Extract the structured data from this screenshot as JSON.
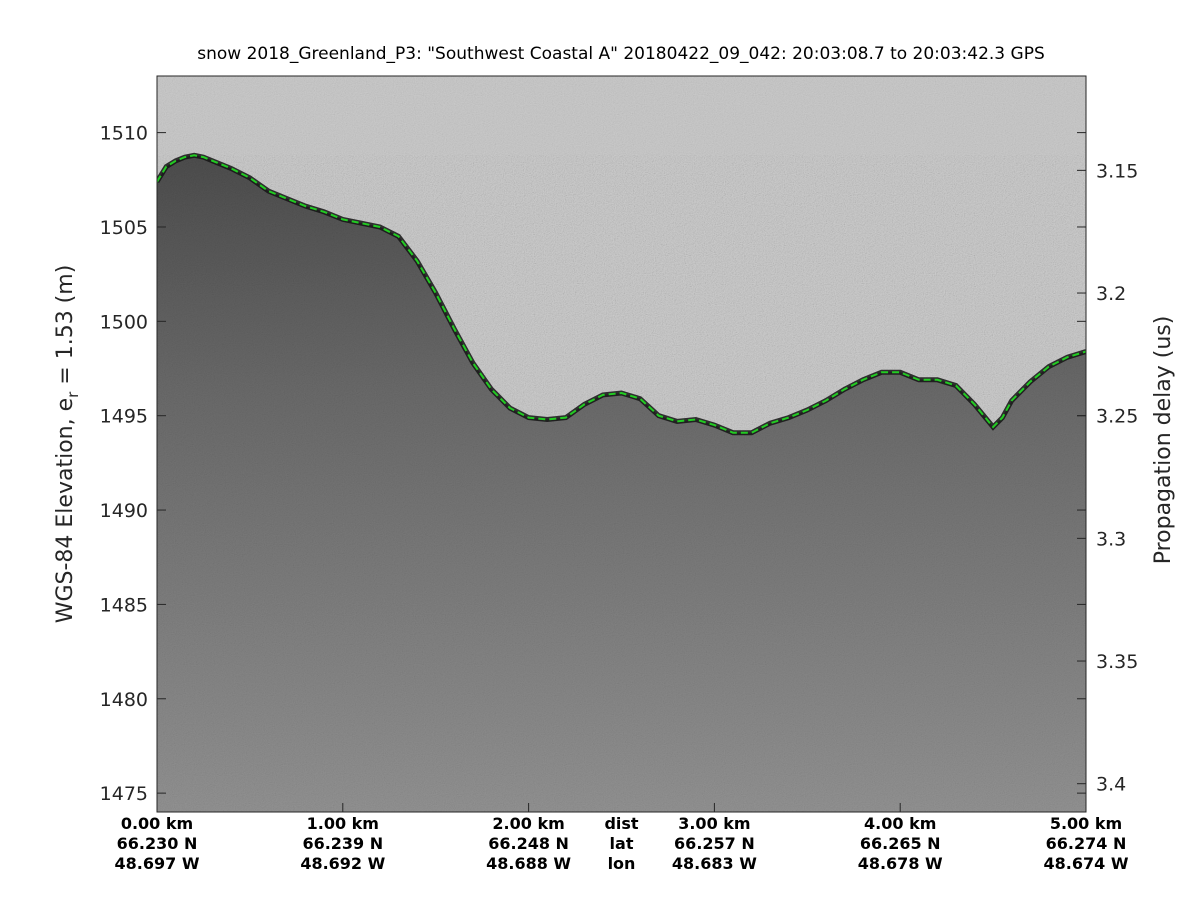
{
  "chart_data": {
    "type": "line",
    "title": "snow 2018_Greenland_P3: \"Southwest Coastal A\"  20180422_09_042: 20:03:08.7 to 20:03:42.3 GPS",
    "ylabel_left": "WGS-84 Elevation, e",
    "ylabel_left_subscript": "r",
    "ylabel_left_suffix": " = 1.53 (m)",
    "ylabel_right": "Propagation delay (us)",
    "xlim": [
      0,
      5
    ],
    "ylim": [
      1474,
      1513
    ],
    "yticks_left": [
      "1475",
      "1480",
      "1485",
      "1490",
      "1495",
      "1500",
      "1505",
      "1510"
    ],
    "yticks_left_values": [
      1475,
      1480,
      1485,
      1490,
      1495,
      1500,
      1505,
      1510
    ],
    "yticks_right": [
      "3.15",
      "3.2",
      "3.25",
      "3.3",
      "3.35",
      "3.4"
    ],
    "yticks_right_values": [
      1508.0,
      1501.5,
      1495.0,
      1488.5,
      1482.0,
      1475.5
    ],
    "x_columns": [
      {
        "dist": "0.00 km",
        "lat": "66.230 N",
        "lon": "48.697 W",
        "x": 0.0
      },
      {
        "dist": "1.00 km",
        "lat": "66.239 N",
        "lon": "48.692 W",
        "x": 1.0
      },
      {
        "dist": "2.00 km",
        "lat": "66.248 N",
        "lon": "48.688 W",
        "x": 2.0
      },
      {
        "dist": "dist",
        "lat": "lat",
        "lon": "lon",
        "x": 2.5
      },
      {
        "dist": "3.00 km",
        "lat": "66.257 N",
        "lon": "48.683 W",
        "x": 3.0
      },
      {
        "dist": "4.00 km",
        "lat": "66.265 N",
        "lon": "48.678 W",
        "x": 4.0
      },
      {
        "dist": "5.00 km",
        "lat": "66.274 N",
        "lon": "48.674 W",
        "x": 5.0
      }
    ],
    "series": [
      {
        "style": "dashed",
        "color": "#22cc22",
        "x": [
          0.0,
          0.05,
          0.1,
          0.15,
          0.2,
          0.25,
          0.3,
          0.4,
          0.5,
          0.6,
          0.7,
          0.8,
          0.9,
          1.0,
          1.1,
          1.2,
          1.3,
          1.4,
          1.5,
          1.6,
          1.7,
          1.8,
          1.9,
          2.0,
          2.1,
          2.2,
          2.3,
          2.4,
          2.5,
          2.6,
          2.7,
          2.8,
          2.9,
          3.0,
          3.1,
          3.2,
          3.3,
          3.4,
          3.5,
          3.6,
          3.7,
          3.8,
          3.9,
          4.0,
          4.1,
          4.2,
          4.3,
          4.4,
          4.5,
          4.55,
          4.6,
          4.7,
          4.8,
          4.9,
          5.0
        ],
        "y": [
          1507.4,
          1508.2,
          1508.5,
          1508.7,
          1508.8,
          1508.7,
          1508.5,
          1508.1,
          1507.6,
          1506.9,
          1506.5,
          1506.1,
          1505.8,
          1505.4,
          1505.2,
          1505.0,
          1504.5,
          1503.2,
          1501.5,
          1499.6,
          1497.8,
          1496.4,
          1495.4,
          1494.9,
          1494.8,
          1494.9,
          1495.6,
          1496.1,
          1496.2,
          1495.9,
          1495.0,
          1494.7,
          1494.8,
          1494.5,
          1494.1,
          1494.1,
          1494.6,
          1494.9,
          1495.3,
          1495.8,
          1496.4,
          1496.9,
          1497.3,
          1497.3,
          1496.9,
          1496.9,
          1496.6,
          1495.6,
          1494.4,
          1494.9,
          1495.8,
          1496.8,
          1497.6,
          1498.1,
          1498.4
        ]
      }
    ],
    "colors": {
      "background_air": "#c9c9c9",
      "background_ice_top": "#5a5a5a",
      "background_ice_bottom": "#8f8f8f",
      "surface_pick": "#22cc22"
    },
    "grid": false
  }
}
